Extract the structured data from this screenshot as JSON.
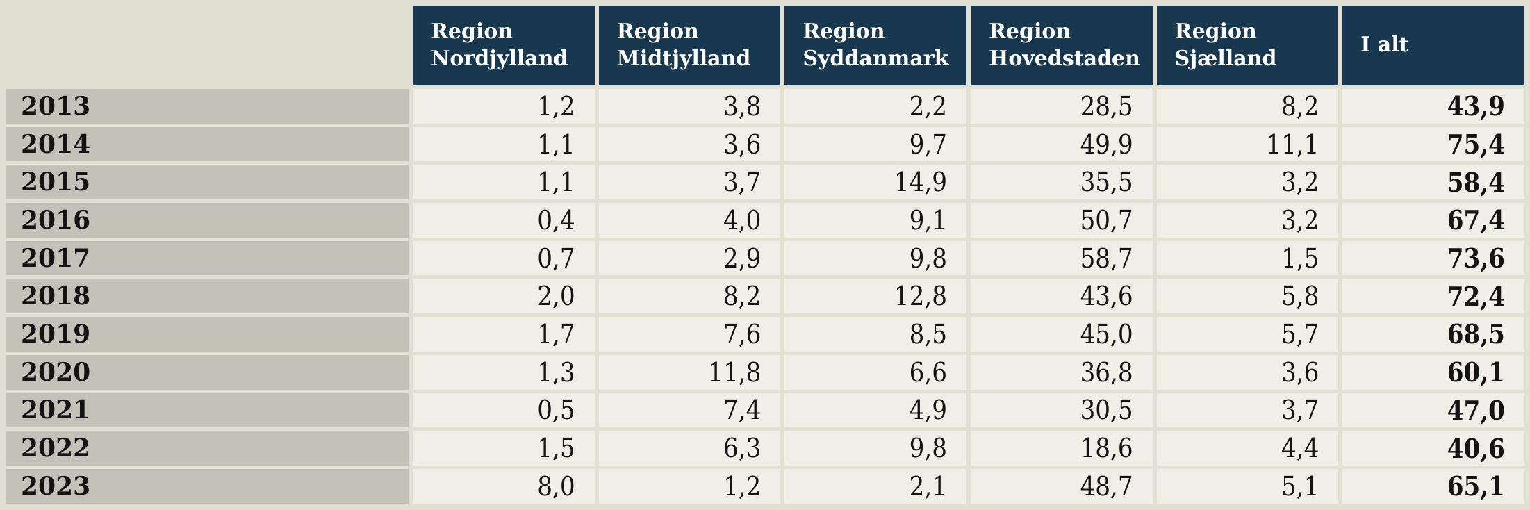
{
  "colors": {
    "background": "#e2e0d2",
    "header_bg": "#17384e",
    "header_text": "#ffffff",
    "label_bg": "#c3c1b8",
    "cell_bg": "#f0eee7",
    "text": "#141414"
  },
  "table": {
    "corner_label": "",
    "columns": [
      "Region\nNordjylland",
      "Region\nMidtjylland",
      "Region\nSyddanmark",
      "Region\nHovedstaden",
      "Region\nSjælland",
      "I alt"
    ],
    "rows": [
      {
        "year": "2013",
        "values": [
          "1,2",
          "3,8",
          "2,2",
          "28,5",
          "8,2"
        ],
        "total": "43,9"
      },
      {
        "year": "2014",
        "values": [
          "1,1",
          "3,6",
          "9,7",
          "49,9",
          "11,1"
        ],
        "total": "75,4"
      },
      {
        "year": "2015",
        "values": [
          "1,1",
          "3,7",
          "14,9",
          "35,5",
          "3,2"
        ],
        "total": "58,4"
      },
      {
        "year": "2016",
        "values": [
          "0,4",
          "4,0",
          "9,1",
          "50,7",
          "3,2"
        ],
        "total": "67,4"
      },
      {
        "year": "2017",
        "values": [
          "0,7",
          "2,9",
          "9,8",
          "58,7",
          "1,5"
        ],
        "total": "73,6"
      },
      {
        "year": "2018",
        "values": [
          "2,0",
          "8,2",
          "12,8",
          "43,6",
          "5,8"
        ],
        "total": "72,4"
      },
      {
        "year": "2019",
        "values": [
          "1,7",
          "7,6",
          "8,5",
          "45,0",
          "5,7"
        ],
        "total": "68,5"
      },
      {
        "year": "2020",
        "values": [
          "1,3",
          "11,8",
          "6,6",
          "36,8",
          "3,6"
        ],
        "total": "60,1"
      },
      {
        "year": "2021",
        "values": [
          "0,5",
          "7,4",
          "4,9",
          "30,5",
          "3,7"
        ],
        "total": "47,0"
      },
      {
        "year": "2022",
        "values": [
          "1,5",
          "6,3",
          "9,8",
          "18,6",
          "4,4"
        ],
        "total": "40,6"
      },
      {
        "year": "2023",
        "values": [
          "8,0",
          "1,2",
          "2,1",
          "48,7",
          "5,1"
        ],
        "total": "65,1"
      }
    ]
  },
  "chart_data": {
    "type": "table",
    "title": "",
    "categories": [
      "2013",
      "2014",
      "2015",
      "2016",
      "2017",
      "2018",
      "2019",
      "2020",
      "2021",
      "2022",
      "2023"
    ],
    "series": [
      {
        "name": "Region Nordjylland",
        "values": [
          1.2,
          1.1,
          1.1,
          0.4,
          0.7,
          2.0,
          1.7,
          1.3,
          0.5,
          1.5,
          8.0
        ]
      },
      {
        "name": "Region Midtjylland",
        "values": [
          3.8,
          3.6,
          3.7,
          4.0,
          2.9,
          8.2,
          7.6,
          11.8,
          7.4,
          6.3,
          1.2
        ]
      },
      {
        "name": "Region Syddanmark",
        "values": [
          2.2,
          9.7,
          14.9,
          9.1,
          9.8,
          12.8,
          8.5,
          6.6,
          4.9,
          9.8,
          2.1
        ]
      },
      {
        "name": "Region Hovedstaden",
        "values": [
          28.5,
          49.9,
          35.5,
          50.7,
          58.7,
          43.6,
          45.0,
          36.8,
          30.5,
          18.6,
          48.7
        ]
      },
      {
        "name": "Region Sjælland",
        "values": [
          8.2,
          11.1,
          3.2,
          3.2,
          1.5,
          5.8,
          5.7,
          3.6,
          3.7,
          4.4,
          5.1
        ]
      },
      {
        "name": "I alt",
        "values": [
          43.9,
          75.4,
          58.4,
          67.4,
          73.6,
          72.4,
          68.5,
          60.1,
          47.0,
          40.6,
          65.1
        ]
      }
    ],
    "layout": {
      "row_header": "year",
      "totals_column": "I alt",
      "decimal_separator": ",",
      "grid": "gapped-cells"
    }
  }
}
